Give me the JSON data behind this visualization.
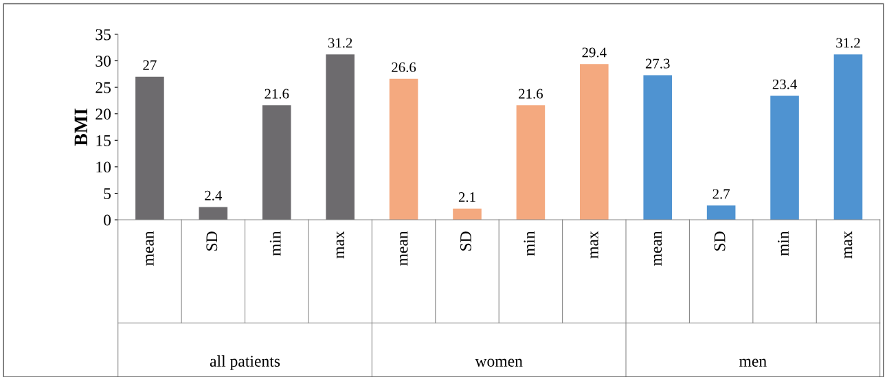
{
  "chart_data": {
    "type": "bar",
    "ylabel": "BMI",
    "categories": [
      "mean",
      "SD",
      "min",
      "max",
      "mean",
      "SD",
      "min",
      "max",
      "mean",
      "SD",
      "min",
      "max"
    ],
    "values": [
      27,
      2.4,
      21.6,
      31.2,
      26.6,
      2.1,
      21.6,
      29.4,
      27.3,
      2.7,
      23.4,
      31.2
    ],
    "colors": [
      "#6d6b6e",
      "#6d6b6e",
      "#6d6b6e",
      "#6d6b6e",
      "#f4a97f",
      "#f4a97f",
      "#f4a97f",
      "#f4a97f",
      "#4f93d1",
      "#4f93d1",
      "#4f93d1",
      "#4f93d1"
    ],
    "annotations": [
      "all patients",
      "women",
      "men"
    ],
    "ylim": [
      0,
      35
    ],
    "yticks": [
      0,
      5,
      10,
      15,
      20,
      25,
      30,
      35
    ],
    "data_labels": true,
    "grid": false,
    "legend": false
  }
}
